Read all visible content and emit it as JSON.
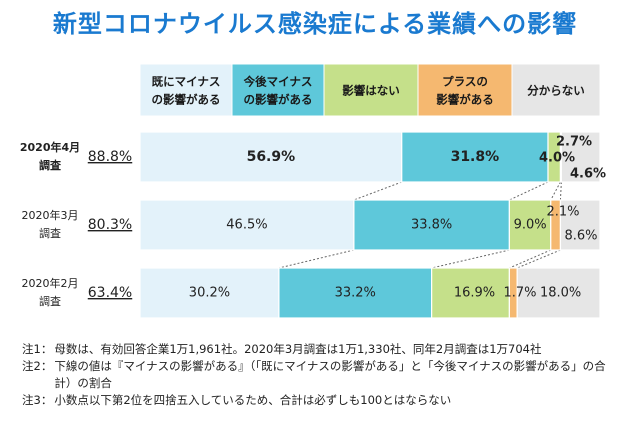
{
  "title": "新型コロナウイルス感染症による業績への影響",
  "chart_data": {
    "type": "bar",
    "stacked": true,
    "orientation": "horizontal",
    "percent_scale": true,
    "categories": [
      {
        "label_line1": "2020年4月",
        "label_line2": "調査",
        "bold": true,
        "underlined_value": "88.8%"
      },
      {
        "label_line1": "2020年3月",
        "label_line2": "調査",
        "bold": false,
        "underlined_value": "80.3%"
      },
      {
        "label_line1": "2020年2月",
        "label_line2": "調査",
        "bold": false,
        "underlined_value": "63.4%"
      }
    ],
    "series": [
      {
        "name": "既にマイナスの影響がある",
        "legend_line1": "既にマイナス",
        "legend_line2": "の影響がある",
        "color": "#e3f2fa",
        "values": [
          56.9,
          46.5,
          30.2
        ],
        "labels": [
          "56.9%",
          "46.5%",
          "30.2%"
        ]
      },
      {
        "name": "今後マイナスの影響がある",
        "legend_line1": "今後マイナス",
        "legend_line2": "の影響がある",
        "color": "#5ec8da",
        "values": [
          31.8,
          33.8,
          33.2
        ],
        "labels": [
          "31.8%",
          "33.8%",
          "33.2%"
        ]
      },
      {
        "name": "影響はない",
        "legend_line1": "影響はない",
        "legend_line2": "",
        "color": "#c5e08a",
        "values": [
          2.7,
          9.0,
          16.9
        ],
        "labels": [
          "2.7%",
          "9.0%",
          "16.9%"
        ]
      },
      {
        "name": "プラスの影響がある",
        "legend_line1": "プラスの",
        "legend_line2": "影響がある",
        "color": "#f5b870",
        "values": [
          0.2,
          2.1,
          1.7
        ],
        "labels": [
          "",
          "2.1%",
          "1.7%"
        ]
      },
      {
        "name": "分からない",
        "legend_line1": "分からない",
        "legend_line2": "",
        "color": "#e6e6e6",
        "values": [
          4.6,
          8.6,
          18.0
        ],
        "labels": [
          "4.6%",
          "8.6%",
          "18.0%"
        ]
      }
    ],
    "extra_label": {
      "category_index": 0,
      "text": "4.0%"
    }
  },
  "notes": [
    {
      "label": "注1：",
      "text": "母数は、有効回答企業1万1,961社。2020年3月調査は1万1,330社、同年2月調査は1万704社"
    },
    {
      "label": "注2：",
      "text": "下線の値は『マイナスの影響がある』（「既にマイナスの影響がある」と「今後マイナスの影響がある」の合計）の割合"
    },
    {
      "label": "注3：",
      "text": "小数点以下第2位を四捨五入しているため、合計は必ずしも100とはならない"
    }
  ]
}
